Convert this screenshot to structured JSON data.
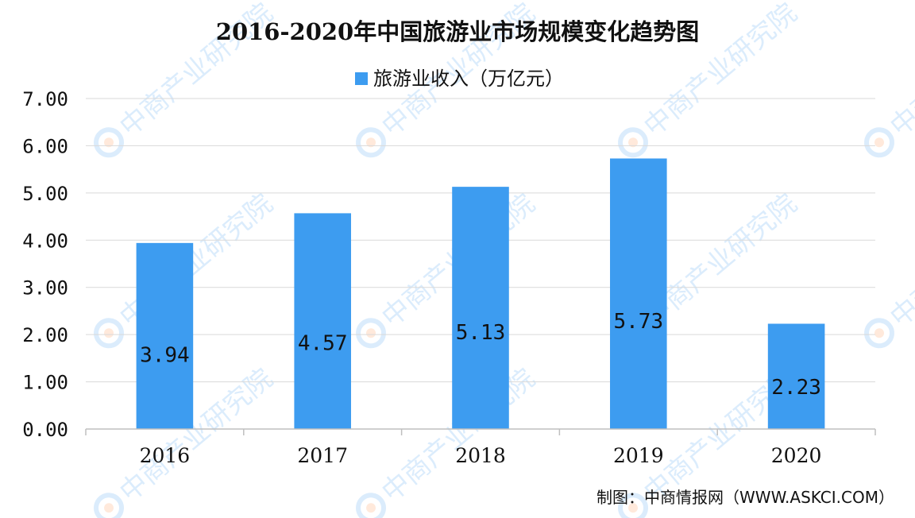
{
  "chart_data": {
    "type": "bar",
    "title": "2016-2020年中国旅游业市场规模变化趋势图",
    "categories": [
      "2016",
      "2017",
      "2018",
      "2019",
      "2020"
    ],
    "series": [
      {
        "name": "旅游业收入（万亿元）",
        "values": [
          3.94,
          4.57,
          5.13,
          5.73,
          2.23
        ]
      }
    ],
    "data_labels": [
      "3.94",
      "4.57",
      "5.13",
      "5.73",
      "2.23"
    ],
    "y_ticks": [
      "0.00",
      "1.00",
      "2.00",
      "3.00",
      "4.00",
      "5.00",
      "6.00",
      "7.00"
    ],
    "ylim": [
      0,
      7
    ],
    "grid": true,
    "legend_position": "top-center",
    "bar_color": "#3d9cf0",
    "source": "制图：中商情报网（WWW.ASKCI.COM）"
  },
  "watermark_text": "中商产业研究院"
}
